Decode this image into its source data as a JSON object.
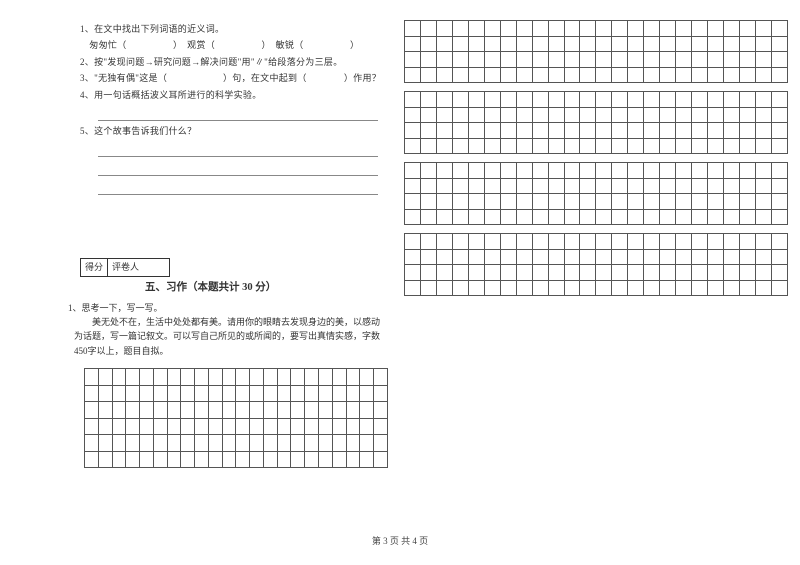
{
  "left": {
    "q1": "1、在文中找出下列词语的近义词。",
    "q1_line": "　匆匆忙（　　　　　）　观赏（　　　　　）　敏锐（　　　　　）",
    "q2": "2、按\"发现问题→研究问题→解决问题\"用\"∥\"给段落分为三层。",
    "q3": "3、\"无独有偶\"这是（　　　　　　）句，在文中起到（　　　　）作用？",
    "q4": "4、用一句话概括波义耳所进行的科学实验。",
    "q5": "5、这个故事告诉我们什么？",
    "score_left": "得分",
    "score_right": "评卷人",
    "section_title": "五、习作（本题共计 30 分）",
    "essay_num": "1、思考一下，写一写。",
    "essay_body": "美无处不在，生活中处处都有美。请用你的眼睛去发现身边的美，以感动为话题，写一篇记叙文。可以写自己所见的或所闻的，要写出真情实感，字数450字以上，题目自拟。"
  },
  "footer": "第 3 页  共 4 页",
  "grid": {
    "right_blocks": 4,
    "right_rows": 4,
    "right_cols": 24,
    "left_rows": 6,
    "left_cols": 22
  },
  "style": {
    "cell_border": "#555",
    "text_color": "#333"
  }
}
